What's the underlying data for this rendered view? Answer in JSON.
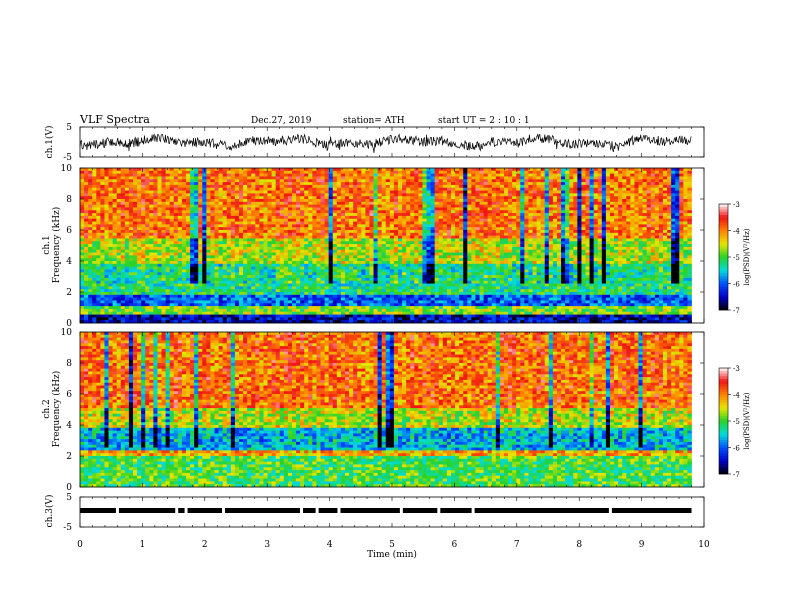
{
  "header": {
    "title": "VLF  Spectra",
    "date": "Dec.27, 2019",
    "station": "station= ATH",
    "start": "start  UT  =   2  : 10 : 1"
  },
  "chart_data": [
    {
      "type": "line",
      "panel": "ch1-waveform",
      "ylabel": "ch.1(V)",
      "ylim": [
        -5,
        5
      ],
      "yticks": [
        "5",
        "-5"
      ],
      "xlim": [
        0,
        10
      ],
      "data_extent_min": [
        0,
        9.8
      ],
      "series": [
        {
          "name": "",
          "y_range_typical": [
            -2.5,
            2.5
          ],
          "y_peak_range": [
            -4,
            1.5
          ]
        }
      ]
    },
    {
      "type": "heatmap",
      "panel": "ch1-spectrogram",
      "ylabel_top": "ch.1",
      "ylabel": "Frequency  (kHz)",
      "ylim": [
        0,
        10
      ],
      "yticks": [
        "0",
        "2",
        "4",
        "6",
        "8",
        "10"
      ],
      "xlim": [
        0,
        10
      ],
      "data_extent_min": [
        0,
        9.8
      ],
      "colorbar": {
        "label": "log(PSD)(V²/Hz)",
        "range": [
          -7,
          -3
        ],
        "ticks": [
          "-3",
          "-4",
          "-5",
          "-6",
          "-7"
        ]
      },
      "bands_khz": [
        {
          "from": 0,
          "to": 0.5,
          "level": -6.5
        },
        {
          "from": 0.5,
          "to": 1.0,
          "level": -4.8
        },
        {
          "from": 1.0,
          "to": 1.8,
          "level": -6.0
        },
        {
          "from": 1.8,
          "to": 3.8,
          "level": -5.2
        },
        {
          "from": 3.8,
          "to": 5.5,
          "level": -4.6
        },
        {
          "from": 5.5,
          "to": 10,
          "level": -3.9
        }
      ]
    },
    {
      "type": "heatmap",
      "panel": "ch2-spectrogram",
      "ylabel_top": "ch.2",
      "ylabel": "Frequency  (kHz)",
      "ylim": [
        0,
        10
      ],
      "yticks": [
        "0",
        "2",
        "4",
        "6",
        "8",
        "10"
      ],
      "xlim": [
        0,
        10
      ],
      "data_extent_min": [
        0,
        9.8
      ],
      "colorbar": {
        "label": "log(PSD)(V²/Hz)",
        "range": [
          -7,
          -3
        ],
        "ticks": [
          "-3",
          "-4",
          "-5",
          "-6",
          "-7"
        ]
      },
      "bands_khz": [
        {
          "from": 0,
          "to": 2.0,
          "level": -5.0
        },
        {
          "from": 2.0,
          "to": 2.3,
          "level": -4.2
        },
        {
          "from": 2.3,
          "to": 3.8,
          "level": -5.6
        },
        {
          "from": 3.8,
          "to": 5.0,
          "level": -4.6
        },
        {
          "from": 5.0,
          "to": 10,
          "level": -3.9
        }
      ]
    },
    {
      "type": "line",
      "panel": "ch3-waveform",
      "ylabel": "ch.3(V)",
      "ylim": [
        -5,
        5
      ],
      "yticks": [
        "5",
        "-5"
      ],
      "xlim": [
        0,
        10
      ],
      "xlabel": "Time  (min)",
      "xticks": [
        "0",
        "1",
        "2",
        "3",
        "4",
        "5",
        "6",
        "7",
        "8",
        "9",
        "10"
      ],
      "data_extent_min": [
        0,
        9.8
      ],
      "series": [
        {
          "name": "",
          "level": 0.5
        }
      ],
      "gaps_min": [
        0.6,
        1.55,
        1.7,
        2.3,
        3.55,
        3.8,
        4.15,
        5.15,
        5.75,
        6.3,
        8.5
      ]
    }
  ]
}
